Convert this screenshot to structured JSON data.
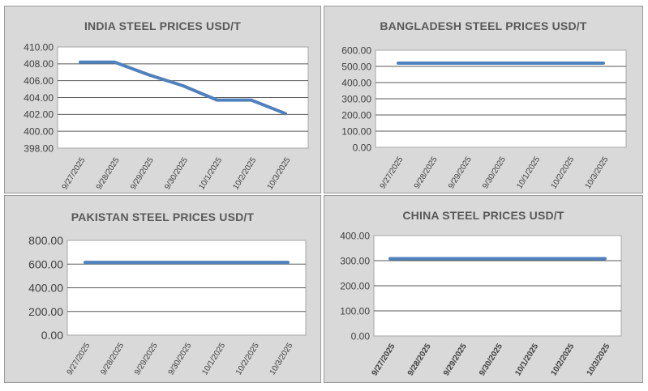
{
  "chart_data": [
    {
      "type": "line",
      "title": "INDIA STEEL PRICES USD/T",
      "categories": [
        "9/27/2025",
        "9/28/2025",
        "9/29/2025",
        "9/30/2025",
        "10/1/2025",
        "10/2/2025",
        "10/3/2025"
      ],
      "series": [
        {
          "values": [
            408.2,
            408.2,
            406.7,
            405.4,
            403.7,
            403.7,
            402.1
          ]
        }
      ],
      "ylim": [
        398,
        410
      ],
      "yticks": [
        "398.00",
        "400.00",
        "402.00",
        "404.00",
        "406.00",
        "408.00",
        "410.00"
      ],
      "grid": true,
      "color": "#4f81bd"
    },
    {
      "type": "line",
      "title": "BANGLADESH STEEL PRICES USD/T",
      "categories": [
        "9/27/2025",
        "9/28/2025",
        "9/29/2025",
        "9/30/2025",
        "10/1/2025",
        "10/2/2025",
        "10/3/2025"
      ],
      "series": [
        {
          "values": [
            520,
            520,
            520,
            520,
            520,
            520,
            520
          ]
        }
      ],
      "ylim": [
        0,
        600
      ],
      "yticks": [
        "0.00",
        "100.00",
        "200.00",
        "300.00",
        "400.00",
        "500.00",
        "600.00"
      ],
      "grid": true,
      "color": "#4f81bd"
    },
    {
      "type": "line",
      "title": "PAKISTAN STEEL PRICES USD/T",
      "categories": [
        "9/27/2025",
        "9/28/2025",
        "9/29/2025",
        "9/30/2025",
        "10/1/2025",
        "10/2/2025",
        "10/3/2025"
      ],
      "series": [
        {
          "values": [
            615,
            615,
            615,
            615,
            615,
            615,
            615
          ]
        }
      ],
      "ylim": [
        0,
        800
      ],
      "yticks": [
        "0.00",
        "200.00",
        "400.00",
        "600.00",
        "800.00"
      ],
      "grid": true,
      "color": "#4f81bd"
    },
    {
      "type": "line",
      "title": "CHINA STEEL PRICES USD/T",
      "categories": [
        "9/27/2025",
        "9/28/2025",
        "9/29/2025",
        "9/30/2025",
        "10/1/2025",
        "10/2/2025",
        "10/3/2025"
      ],
      "series": [
        {
          "values": [
            308,
            308,
            308,
            308,
            308,
            308,
            308
          ]
        }
      ],
      "ylim": [
        0,
        400
      ],
      "yticks": [
        "0.00",
        "100.00",
        "200.00",
        "300.00",
        "400.00"
      ],
      "grid": true,
      "color": "#4f81bd"
    }
  ]
}
